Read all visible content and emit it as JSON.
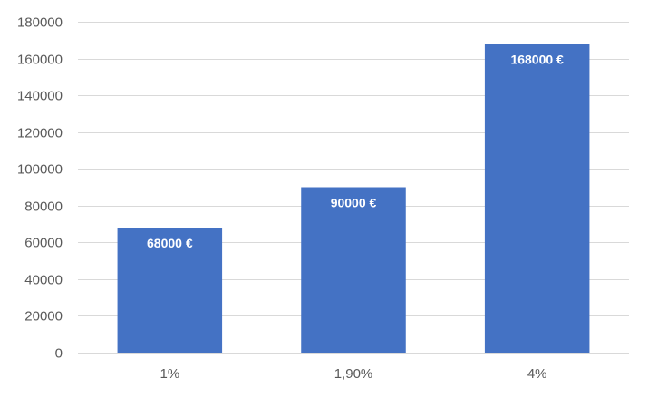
{
  "chart_data": {
    "type": "bar",
    "categories": [
      "1%",
      "1,90%",
      "4%"
    ],
    "values": [
      68000,
      90000,
      168000
    ],
    "data_labels": [
      "68000 €",
      "90000 €",
      "168000 €"
    ],
    "ylim": [
      0,
      180000
    ],
    "yticks": [
      0,
      20000,
      40000,
      60000,
      80000,
      100000,
      120000,
      140000,
      160000,
      180000
    ],
    "ytick_labels": [
      "0",
      "20000",
      "40000",
      "60000",
      "80000",
      "100000",
      "120000",
      "140000",
      "160000",
      "180000"
    ],
    "title": "",
    "xlabel": "",
    "ylabel": "",
    "grid": true,
    "legend": "none",
    "bar_color": "#4472c4",
    "label_color": "#ffffff"
  }
}
